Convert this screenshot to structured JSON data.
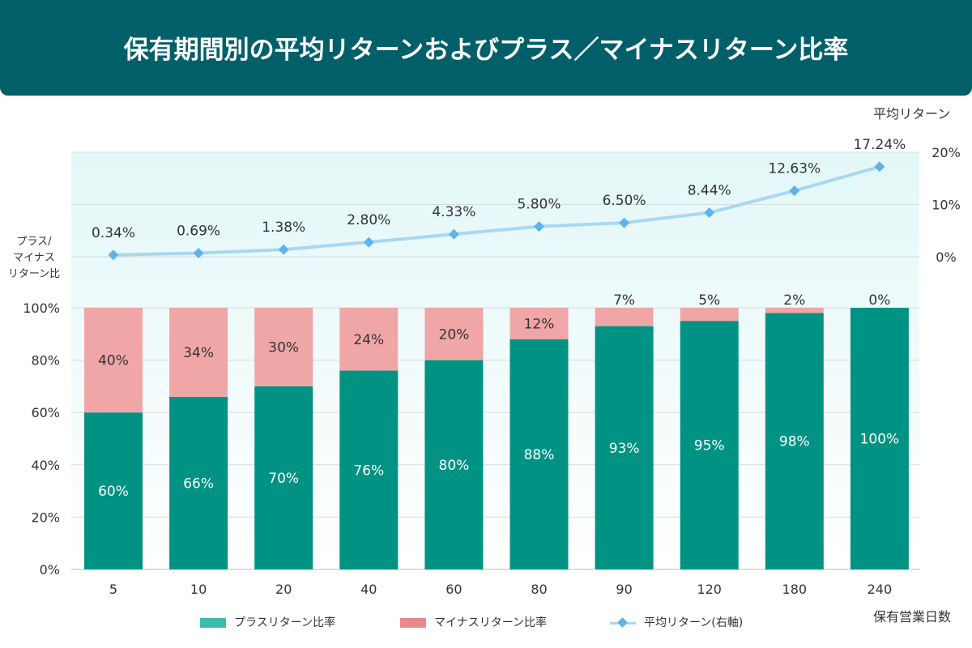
{
  "title": "保有期間別の平均リターンおよびプラス／マイナスリターン比率",
  "left_axis_title": [
    "プラス/",
    "マイナス",
    "リターン比"
  ],
  "right_axis_title": "平均リターン",
  "x_axis_title": "保有営業日数",
  "colors": {
    "header_bg": "#005f69",
    "plus": "#009383",
    "minus": "#f0a6a7",
    "line": "#a8d8f2",
    "marker": "#5fb3ec",
    "legend_plus": "#3dbcac",
    "legend_minus": "#e88a8b"
  },
  "legend": [
    {
      "label": "プラスリターン比率"
    },
    {
      "label": "マイナスリターン比率"
    },
    {
      "label": "平均リターン(右軸)"
    }
  ],
  "chart_data": {
    "type": "bar",
    "stacked": true,
    "categories": [
      "5",
      "10",
      "20",
      "40",
      "60",
      "80",
      "90",
      "120",
      "180",
      "240"
    ],
    "series": [
      {
        "name": "プラスリターン比率",
        "values": [
          60,
          66,
          70,
          76,
          80,
          88,
          93,
          95,
          98,
          100
        ],
        "labels": [
          "60%",
          "66%",
          "70%",
          "76%",
          "80%",
          "88%",
          "93%",
          "95%",
          "98%",
          "100%"
        ]
      },
      {
        "name": "マイナスリターン比率",
        "values": [
          40,
          34,
          30,
          24,
          20,
          12,
          7,
          5,
          2,
          0
        ],
        "labels": [
          "40%",
          "34%",
          "30%",
          "24%",
          "20%",
          "12%",
          "7%",
          "5%",
          "2%",
          "0%"
        ]
      },
      {
        "name": "平均リターン(右軸)",
        "type": "line",
        "axis": "right",
        "values": [
          0.34,
          0.69,
          1.38,
          2.8,
          4.33,
          5.8,
          6.5,
          8.44,
          12.63,
          17.24
        ],
        "labels": [
          "0.34%",
          "0.69%",
          "1.38%",
          "2.80%",
          "4.33%",
          "5.80%",
          "6.50%",
          "8.44%",
          "12.63%",
          "17.24%"
        ]
      }
    ],
    "left_ticks": [
      "0%",
      "20%",
      "40%",
      "60%",
      "80%",
      "100%"
    ],
    "left_tick_values": [
      0,
      20,
      40,
      60,
      80,
      100
    ],
    "ylim_left": [
      0,
      100
    ],
    "right_ticks": [
      "0%",
      "10%",
      "20%"
    ],
    "right_tick_values": [
      0,
      10,
      20
    ],
    "ylim_right": [
      0,
      20
    ],
    "xlabel": "保有営業日数",
    "ylabel": "プラス/マイナスリターン比",
    "ylabel_right": "平均リターン"
  }
}
